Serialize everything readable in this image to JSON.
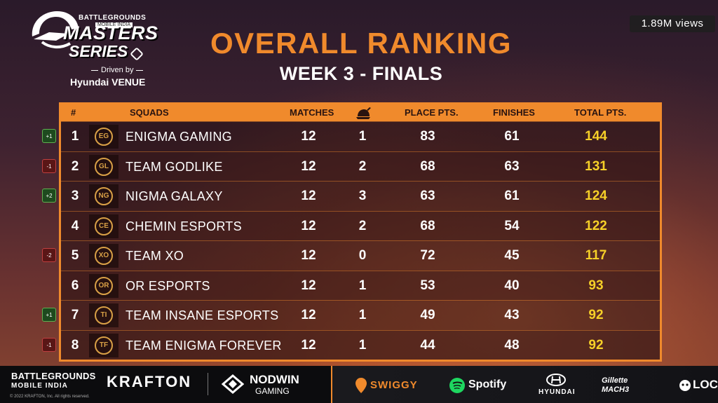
{
  "logo": {
    "brand": "BATTLEGROUNDS",
    "brand_sub": "MOBILE INDIA",
    "line1": "MASTERS",
    "line2": "SERIES",
    "driven_by": "Driven by",
    "sponsor": "Hyundai VENUE"
  },
  "views": "1.89M views",
  "title": "OVERALL RANKING",
  "subtitle": "WEEK 3 - FINALS",
  "table": {
    "headers": {
      "rank": "#",
      "squads": "SQUADS",
      "matches": "MATCHES",
      "dinner_icon": "chicken-dinner-icon",
      "place": "PLACE PTS.",
      "finishes": "FINISHES",
      "total": "TOTAL PTS."
    },
    "rows": [
      {
        "rank": "1",
        "change": "+1",
        "dir": "up",
        "logo": "EG",
        "name": "ENIGMA GAMING",
        "matches": "12",
        "dinners": "1",
        "place": "83",
        "finishes": "61",
        "total": "144"
      },
      {
        "rank": "2",
        "change": "-1",
        "dir": "down",
        "logo": "GL",
        "name": "TEAM GODLIKE",
        "matches": "12",
        "dinners": "2",
        "place": "68",
        "finishes": "63",
        "total": "131"
      },
      {
        "rank": "3",
        "change": "+2",
        "dir": "up",
        "logo": "NG",
        "name": "NIGMA GALAXY",
        "matches": "12",
        "dinners": "3",
        "place": "63",
        "finishes": "61",
        "total": "124"
      },
      {
        "rank": "4",
        "change": "",
        "dir": "",
        "logo": "CE",
        "name": "CHEMIN ESPORTS",
        "matches": "12",
        "dinners": "2",
        "place": "68",
        "finishes": "54",
        "total": "122"
      },
      {
        "rank": "5",
        "change": "-2",
        "dir": "down",
        "logo": "XO",
        "name": "TEAM XO",
        "matches": "12",
        "dinners": "0",
        "place": "72",
        "finishes": "45",
        "total": "117"
      },
      {
        "rank": "6",
        "change": "",
        "dir": "",
        "logo": "OR",
        "name": "OR ESPORTS",
        "matches": "12",
        "dinners": "1",
        "place": "53",
        "finishes": "40",
        "total": "93"
      },
      {
        "rank": "7",
        "change": "+1",
        "dir": "up",
        "logo": "TI",
        "name": "TEAM INSANE ESPORTS",
        "matches": "12",
        "dinners": "1",
        "place": "49",
        "finishes": "43",
        "total": "92"
      },
      {
        "rank": "8",
        "change": "-1",
        "dir": "down",
        "logo": "TF",
        "name": "TEAM ENIGMA FOREVER",
        "matches": "12",
        "dinners": "1",
        "place": "44",
        "finishes": "48",
        "total": "92"
      }
    ]
  },
  "footer": {
    "bgmi_line1": "BATTLEGROUNDS",
    "bgmi_line2": "MOBILE INDIA",
    "krafton": "KRAFTON",
    "nodwin1": "NODWIN",
    "nodwin2": "GAMING",
    "swiggy": "SWIGGY",
    "spotify": "Spotify",
    "hyundai": "HYUNDAI",
    "gillette": "Gillette MACH3",
    "loco": "LOC",
    "copyright": "© 2022 KRAFTON, Inc. All rights reserved."
  },
  "colors": {
    "accent": "#f08a2c",
    "total_text": "#f6d028",
    "up_badge": "#1e4a1e",
    "down_badge": "#5a1616"
  }
}
